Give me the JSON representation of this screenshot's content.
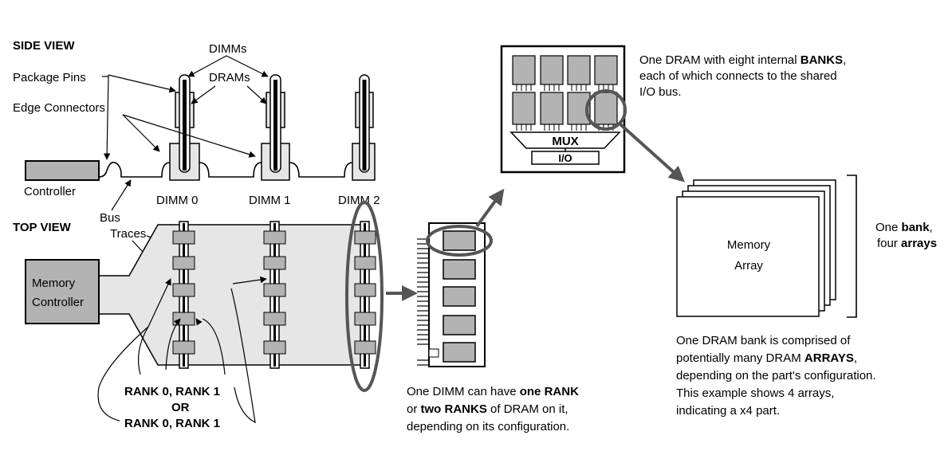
{
  "side_view": {
    "title": "SIDE VIEW",
    "label_dimms": "DIMMs",
    "label_drams": "DRAMs",
    "label_package_pins": "Package Pins",
    "label_edge_connectors": "Edge Connectors",
    "label_controller": "Controller",
    "dimm_labels": [
      "DIMM 0",
      "DIMM 1",
      "DIMM 2"
    ]
  },
  "top_view": {
    "title": "TOP VIEW",
    "bus_traces": [
      "Bus",
      "Traces"
    ],
    "memory_controller": [
      "Memory",
      "Controller"
    ],
    "rank_lines": [
      "RANK 0, RANK 1",
      "OR",
      "RANK 0, RANK 1"
    ]
  },
  "dimm_caption": {
    "line1_pre": "One DIMM can have ",
    "line1_bold": "one RANK",
    "line2_pre": "or ",
    "line2_bold": "two RANKS",
    "line2_post": " of DRAM on it,",
    "line3": "depending on its configuration."
  },
  "dram_chip": {
    "mux": "MUX",
    "io": "I/O"
  },
  "dram_caption": {
    "line1_pre": "One DRAM with eight internal ",
    "line1_bold": "BANKS",
    "line1_post": ",",
    "line2": "each of which connects to the shared",
    "line3": "I/O bus."
  },
  "bank": {
    "array_label": [
      "Memory",
      "Array"
    ],
    "side_line1_pre": "One ",
    "side_line1_bold": "bank",
    "side_line1_post": ",",
    "side_line2_pre": "four ",
    "side_line2_bold": "arrays"
  },
  "bank_caption": {
    "line1": "One DRAM bank is comprised of",
    "line2_pre": "potentially many DRAM ",
    "line2_bold": "ARRAYS",
    "line2_post": ",",
    "line3": "depending on the part's configuration.",
    "line4": "This example shows 4 arrays,",
    "line5": "indicating a x4 part."
  },
  "colors": {
    "ink": "#000000",
    "chip_fill": "#b3b3b3",
    "bus_fill": "#e6e6e6",
    "highlight": "#555555"
  }
}
